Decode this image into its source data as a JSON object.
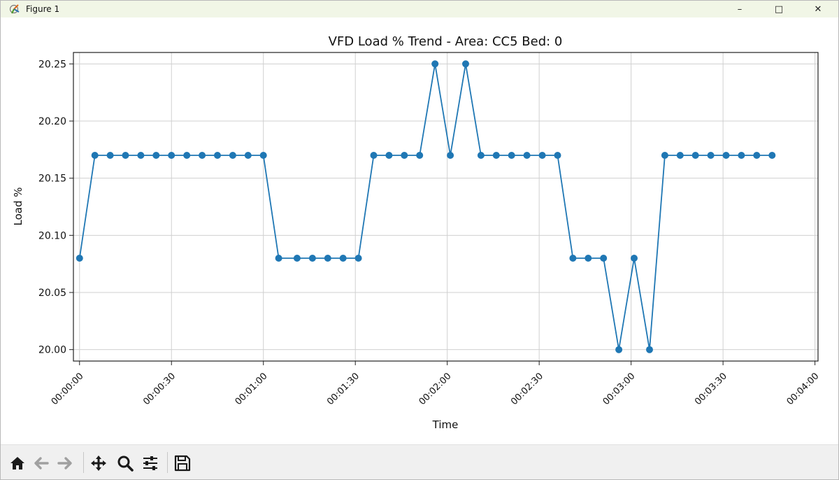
{
  "window": {
    "title": "Figure 1",
    "minimize_glyph": "–",
    "maximize_glyph": "□",
    "close_glyph": "✕"
  },
  "toolbar": {
    "buttons": [
      {
        "name": "home-button",
        "icon": "home-icon"
      },
      {
        "name": "back-button",
        "icon": "arrow-left-icon"
      },
      {
        "name": "forward-button",
        "icon": "arrow-right-icon"
      },
      {
        "name": "pan-button",
        "icon": "move-icon"
      },
      {
        "name": "zoom-button",
        "icon": "magnifier-icon"
      },
      {
        "name": "configure-subplots-button",
        "icon": "sliders-icon"
      },
      {
        "name": "save-button",
        "icon": "floppy-disk-icon"
      }
    ]
  },
  "colors": {
    "series": "#1f77b4",
    "grid": "#d0d0d0",
    "titlebar": "#f1f6e6",
    "toolbar": "#f0f0f0"
  },
  "chart_data": {
    "type": "line",
    "title": "VFD Load % Trend - Area: CC5 Bed: 0",
    "xlabel": "Time",
    "ylabel": "Load %",
    "grid": true,
    "marker": "circle",
    "xlim": [
      "-00:00:02",
      "00:04:01"
    ],
    "ylim": [
      19.99,
      20.26
    ],
    "x_ticks": [
      "00:00:00",
      "00:00:30",
      "00:01:00",
      "00:01:30",
      "00:02:00",
      "00:02:30",
      "00:03:00",
      "00:03:30",
      "00:04:00"
    ],
    "y_ticks": [
      "20.00",
      "20.05",
      "20.10",
      "20.15",
      "20.20",
      "20.25"
    ],
    "series": [
      {
        "x": [
          "00:00:00",
          "00:00:05",
          "00:00:10",
          "00:00:15",
          "00:00:20",
          "00:00:25",
          "00:00:30",
          "00:00:35",
          "00:00:40",
          "00:00:45",
          "00:00:50",
          "00:00:55",
          "00:01:00",
          "00:01:05",
          "00:01:11",
          "00:01:16",
          "00:01:21",
          "00:01:26",
          "00:01:31",
          "00:01:36",
          "00:01:41",
          "00:01:46",
          "00:01:51",
          "00:01:56",
          "00:02:01",
          "00:02:06",
          "00:02:11",
          "00:02:16",
          "00:02:21",
          "00:02:26",
          "00:02:31",
          "00:02:36",
          "00:02:41",
          "00:02:46",
          "00:02:51",
          "00:02:56",
          "00:03:01",
          "00:03:06",
          "00:03:11",
          "00:03:16",
          "00:03:21",
          "00:03:26",
          "00:03:31",
          "00:03:36",
          "00:03:41",
          "00:03:46"
        ],
        "values": [
          20.08,
          20.17,
          20.17,
          20.17,
          20.17,
          20.17,
          20.17,
          20.17,
          20.17,
          20.17,
          20.17,
          20.17,
          20.17,
          20.08,
          20.08,
          20.08,
          20.08,
          20.08,
          20.08,
          20.17,
          20.17,
          20.17,
          20.17,
          20.25,
          20.17,
          20.25,
          20.17,
          20.17,
          20.17,
          20.17,
          20.17,
          20.17,
          20.08,
          20.08,
          20.08,
          20.0,
          20.08,
          20.0,
          20.17,
          20.17,
          20.17,
          20.17,
          20.17,
          20.17,
          20.17,
          20.17
        ]
      }
    ]
  }
}
